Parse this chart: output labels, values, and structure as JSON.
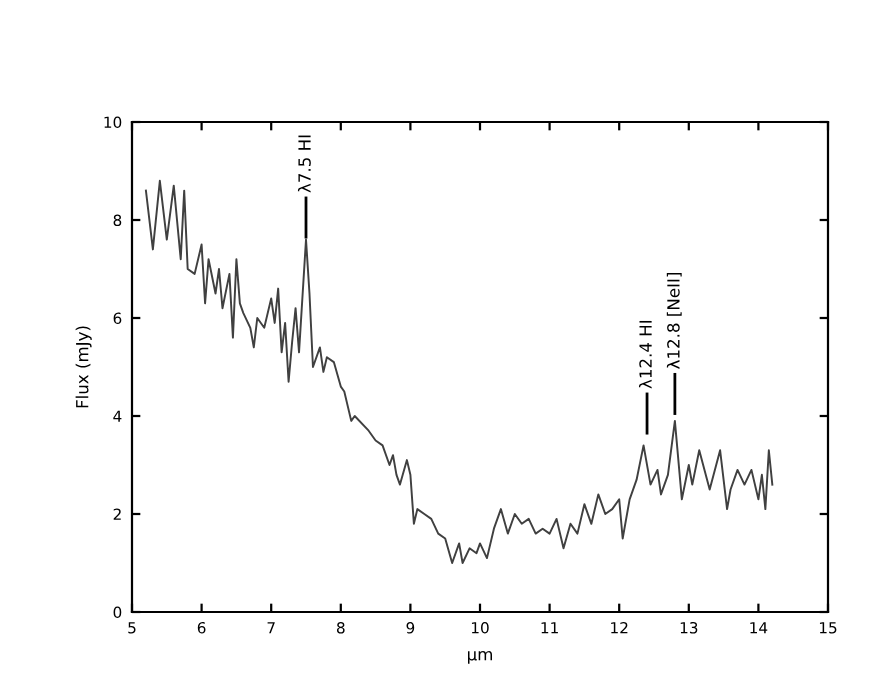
{
  "chart_data": {
    "type": "line",
    "xlabel": "μm",
    "ylabel": "Flux (mJy)",
    "xlim": [
      5,
      15
    ],
    "ylim": [
      0,
      10
    ],
    "xticks": [
      5,
      6,
      7,
      8,
      9,
      10,
      11,
      12,
      13,
      14,
      15
    ],
    "yticks": [
      0,
      2,
      4,
      6,
      8,
      10
    ],
    "grid": false,
    "marker": "none",
    "line_style": "solid",
    "series": [
      {
        "color": "#404040",
        "x": [
          5.2,
          5.3,
          5.4,
          5.5,
          5.6,
          5.7,
          5.75,
          5.8,
          5.9,
          6.0,
          6.05,
          6.1,
          6.2,
          6.25,
          6.3,
          6.4,
          6.45,
          6.5,
          6.55,
          6.6,
          6.7,
          6.75,
          6.8,
          6.9,
          7.0,
          7.05,
          7.1,
          7.15,
          7.2,
          7.25,
          7.3,
          7.35,
          7.4,
          7.5,
          7.55,
          7.6,
          7.7,
          7.75,
          7.8,
          7.9,
          8.0,
          8.05,
          8.15,
          8.2,
          8.4,
          8.5,
          8.6,
          8.7,
          8.75,
          8.8,
          8.85,
          8.95,
          9.0,
          9.05,
          9.1,
          9.2,
          9.3,
          9.4,
          9.5,
          9.6,
          9.7,
          9.75,
          9.85,
          9.95,
          10.0,
          10.1,
          10.2,
          10.3,
          10.4,
          10.5,
          10.6,
          10.7,
          10.8,
          10.9,
          11.0,
          11.1,
          11.2,
          11.3,
          11.4,
          11.5,
          11.6,
          11.7,
          11.8,
          11.9,
          12.0,
          12.05,
          12.15,
          12.25,
          12.35,
          12.45,
          12.55,
          12.6,
          12.7,
          12.8,
          12.9,
          13.0,
          13.05,
          13.15,
          13.3,
          13.45,
          13.55,
          13.6,
          13.7,
          13.8,
          13.9,
          14.0,
          14.05,
          14.1,
          14.15,
          14.2
        ],
        "values": [
          8.6,
          7.4,
          8.8,
          7.6,
          8.7,
          7.2,
          8.6,
          7.0,
          6.9,
          7.5,
          6.3,
          7.2,
          6.5,
          7.0,
          6.2,
          6.9,
          5.6,
          7.2,
          6.3,
          6.1,
          5.8,
          5.4,
          6.0,
          5.8,
          6.4,
          5.9,
          6.6,
          5.3,
          5.9,
          4.7,
          5.5,
          6.2,
          5.3,
          7.6,
          6.5,
          5.0,
          5.4,
          4.9,
          5.2,
          5.1,
          4.6,
          4.5,
          3.9,
          4.0,
          3.7,
          3.5,
          3.4,
          3.0,
          3.2,
          2.8,
          2.6,
          3.1,
          2.8,
          1.8,
          2.1,
          2.0,
          1.9,
          1.6,
          1.5,
          1.0,
          1.4,
          1.0,
          1.3,
          1.2,
          1.4,
          1.1,
          1.7,
          2.1,
          1.6,
          2.0,
          1.8,
          1.9,
          1.6,
          1.7,
          1.6,
          1.9,
          1.3,
          1.8,
          1.6,
          2.2,
          1.8,
          2.4,
          2.0,
          2.1,
          2.3,
          1.5,
          2.3,
          2.7,
          3.4,
          2.6,
          2.9,
          2.4,
          2.8,
          3.9,
          2.3,
          3.0,
          2.6,
          3.3,
          2.5,
          3.3,
          2.1,
          2.5,
          2.9,
          2.6,
          2.9,
          2.3,
          2.8,
          2.1,
          3.3,
          2.6
        ]
      }
    ],
    "annotations": [
      {
        "text": "λ7.5 HI",
        "x": 7.5,
        "y": 7.6
      },
      {
        "text": "λ12.4 HI",
        "x": 12.4,
        "y": 3.6
      },
      {
        "text": "λ12.8 [NeII]",
        "x": 12.8,
        "y": 4.0
      }
    ]
  }
}
